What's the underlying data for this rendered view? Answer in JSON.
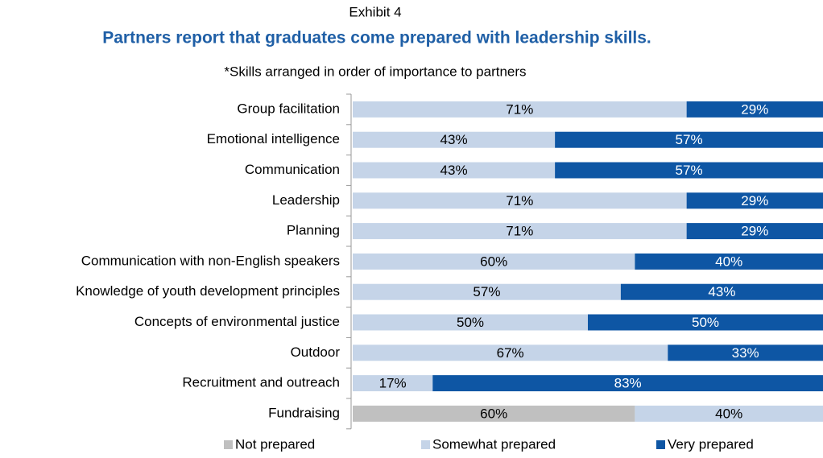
{
  "chart_data": {
    "type": "stacked-bar-horizontal",
    "exhibit": "Exhibit 4",
    "title": "Partners report that graduates come prepared with leadership skills.",
    "subtitle": "*Skills arranged in order of importance to partners",
    "categories": [
      "Group facilitation",
      "Emotional intelligence",
      "Communication",
      "Leadership",
      "Planning",
      "Communication with non-English speakers",
      "Knowledge of youth development principles",
      "Concepts of environmental justice",
      "Outdoor",
      "Recruitment and outreach",
      "Fundraising"
    ],
    "series": [
      {
        "name": "Not prepared",
        "color": "#c0c0c0",
        "label_color": "#000000",
        "values": [
          null,
          null,
          null,
          null,
          null,
          null,
          null,
          null,
          null,
          null,
          60
        ],
        "value_labels": [
          null,
          null,
          null,
          null,
          null,
          null,
          null,
          null,
          null,
          null,
          "60%"
        ]
      },
      {
        "name": "Somewhat prepared",
        "color": "#c5d4e8",
        "label_color": "#000000",
        "values": [
          71,
          43,
          43,
          71,
          71,
          60,
          57,
          50,
          67,
          17,
          40
        ],
        "value_labels": [
          "71%",
          "43%",
          "43%",
          "71%",
          "71%",
          "60%",
          "57%",
          "50%",
          "67%",
          "17%",
          "40%"
        ]
      },
      {
        "name": "Very prepared",
        "color": "#0e56a4",
        "label_color": "#ffffff",
        "values": [
          29,
          57,
          57,
          29,
          29,
          40,
          43,
          50,
          33,
          83,
          null
        ],
        "value_labels": [
          "29%",
          "57%",
          "57%",
          "29%",
          "29%",
          "40%",
          "43%",
          "50%",
          "33%",
          "83%",
          null
        ]
      }
    ]
  }
}
